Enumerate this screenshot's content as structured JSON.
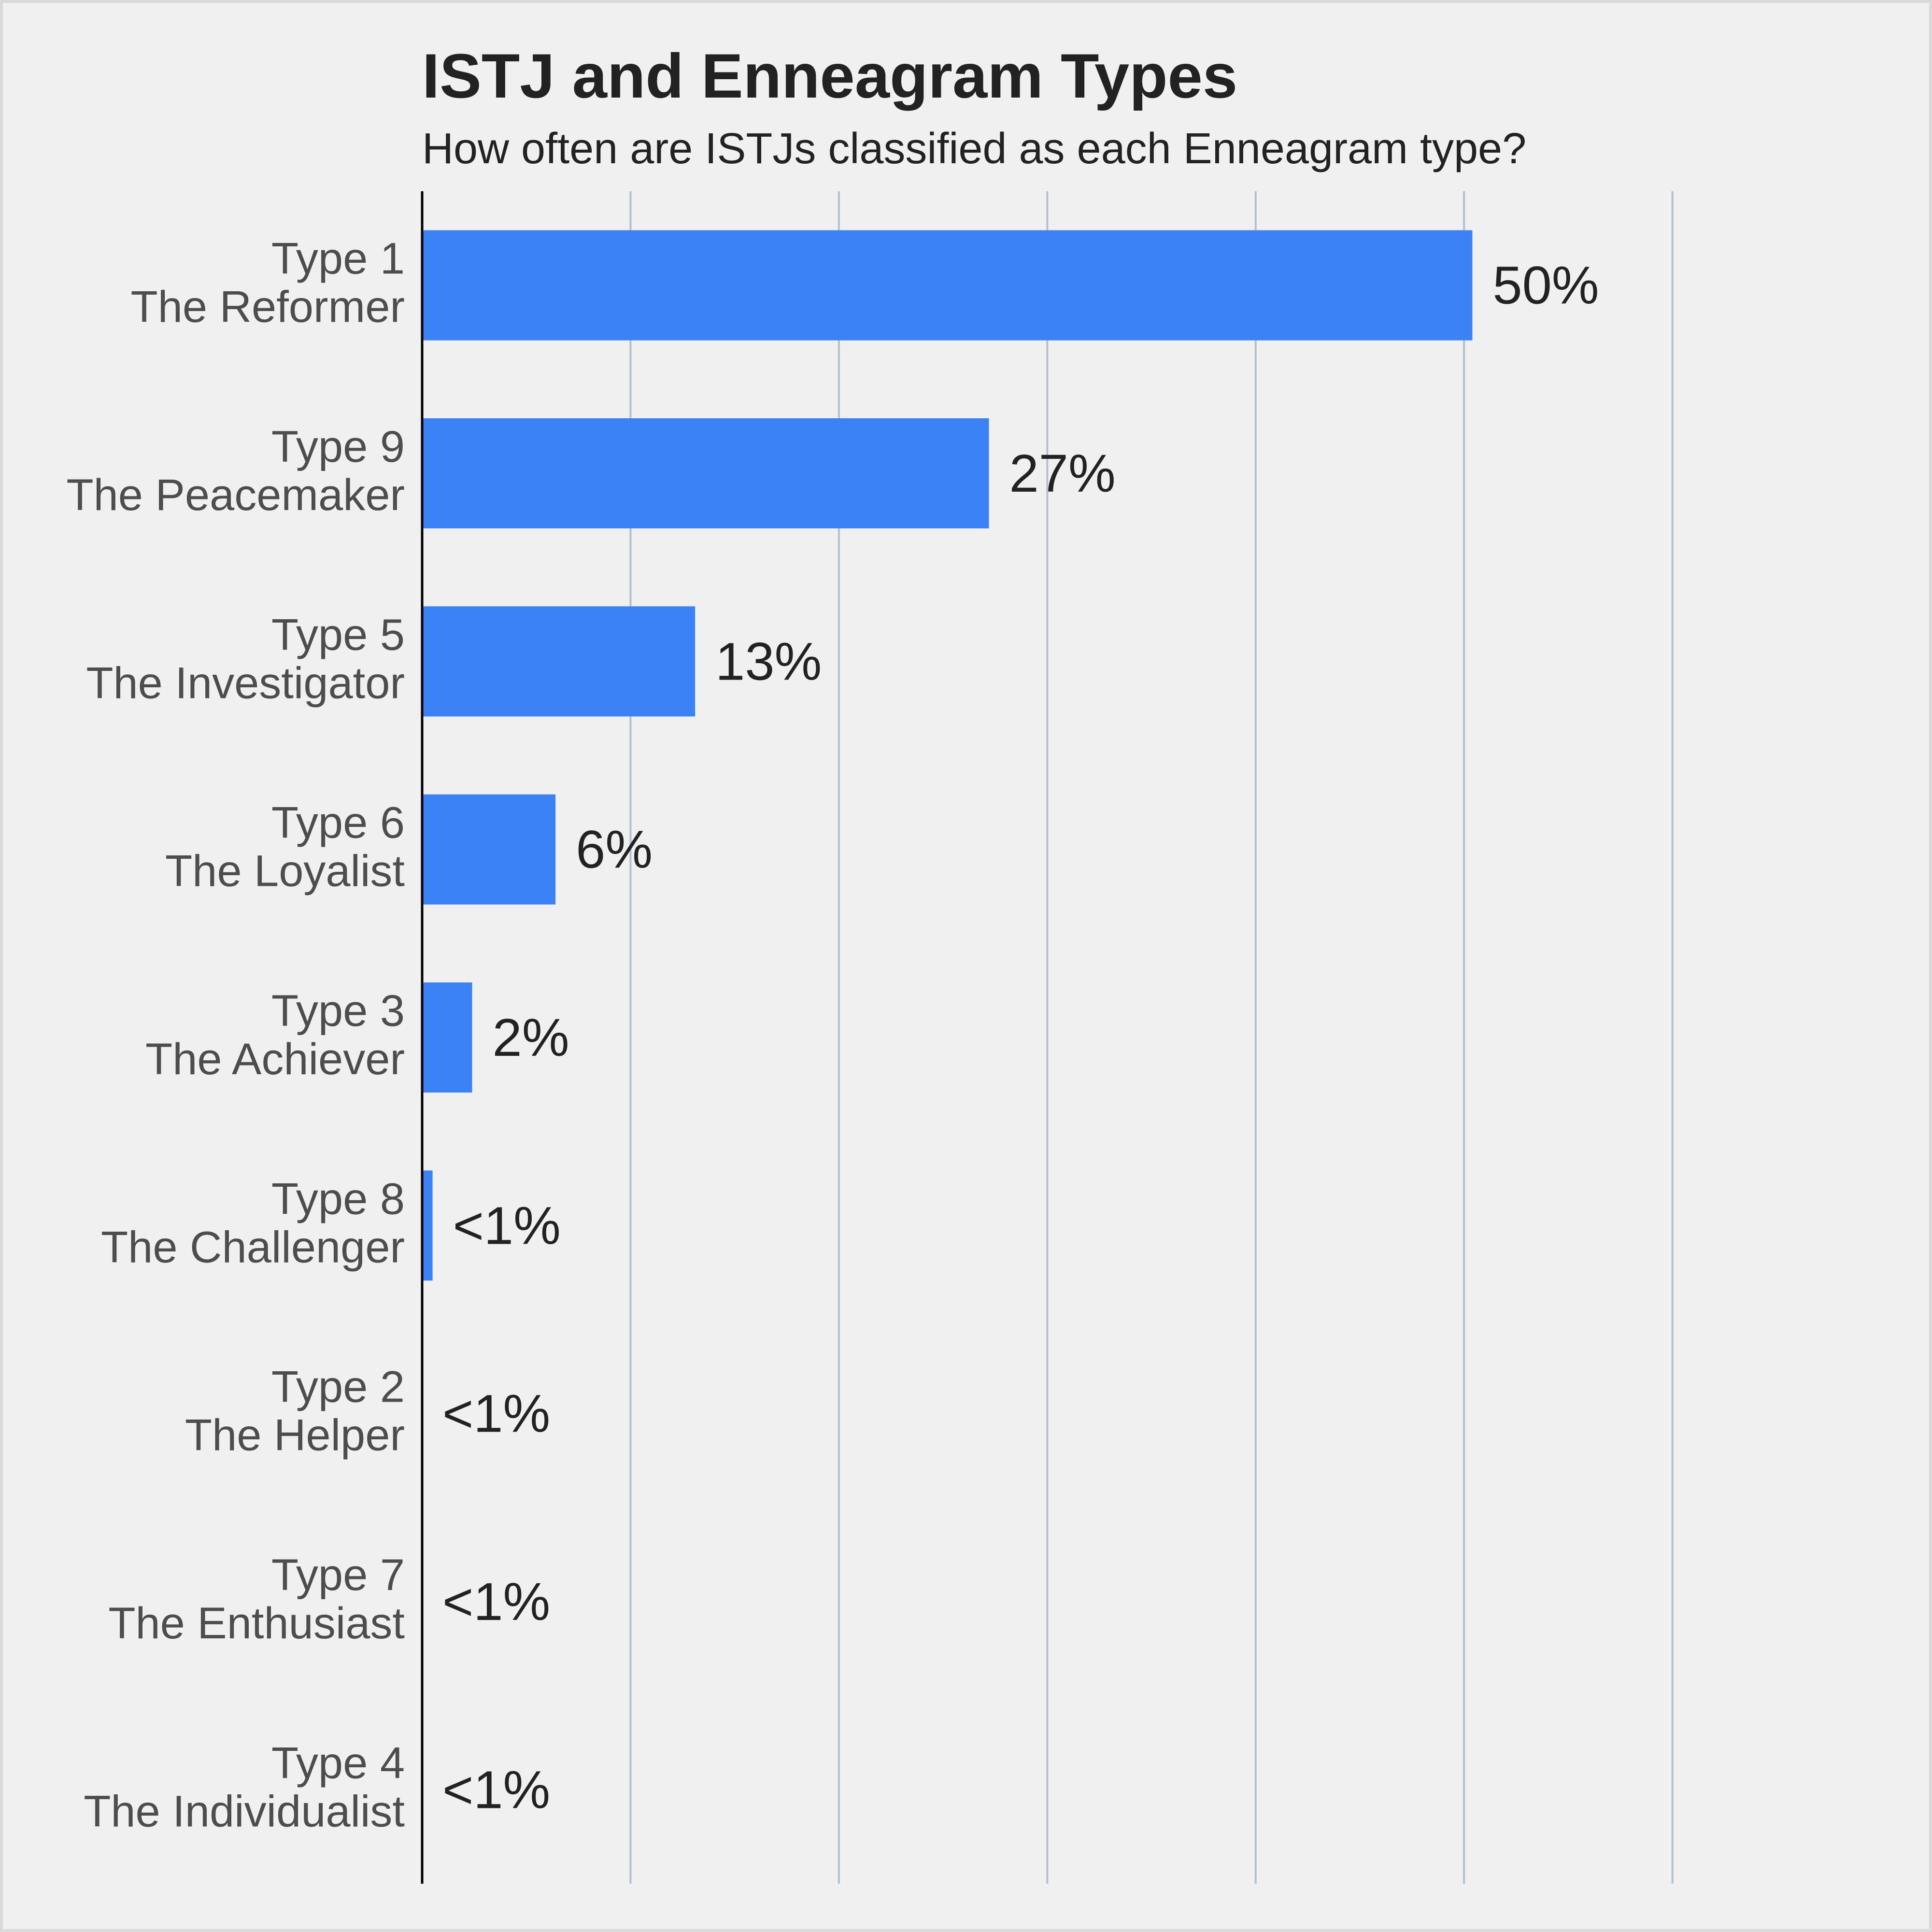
{
  "chart_data": {
    "type": "bar",
    "orientation": "horizontal",
    "title": "ISTJ and Enneagram Types",
    "subtitle": "How often are ISTJs classified as each Enneagram type?",
    "categories": [
      [
        "Type 1",
        "The Reformer"
      ],
      [
        "Type 9",
        "The Peacemaker"
      ],
      [
        "Type 5",
        "The Investigator"
      ],
      [
        "Type 6",
        "The Loyalist"
      ],
      [
        "Type 3",
        "The Achiever"
      ],
      [
        "Type 8",
        "The Challenger"
      ],
      [
        "Type 2",
        "The Helper"
      ],
      [
        "Type 7",
        "The Enthusiast"
      ],
      [
        "Type 4",
        "The Individualist"
      ]
    ],
    "values": [
      50.4,
      27.2,
      13.1,
      6.4,
      2.4,
      0.5,
      0,
      0,
      0
    ],
    "labels": [
      "50%",
      "27%",
      "13%",
      "6%",
      "2%",
      "<1%",
      "<1%",
      "<1%",
      "<1%"
    ],
    "xlim": [
      0,
      70
    ],
    "grid": true,
    "colors": {
      "bar": "#3b82f6",
      "grid": "#b4bfcc",
      "axis": "#000000",
      "background": "#f0f0f0"
    }
  }
}
